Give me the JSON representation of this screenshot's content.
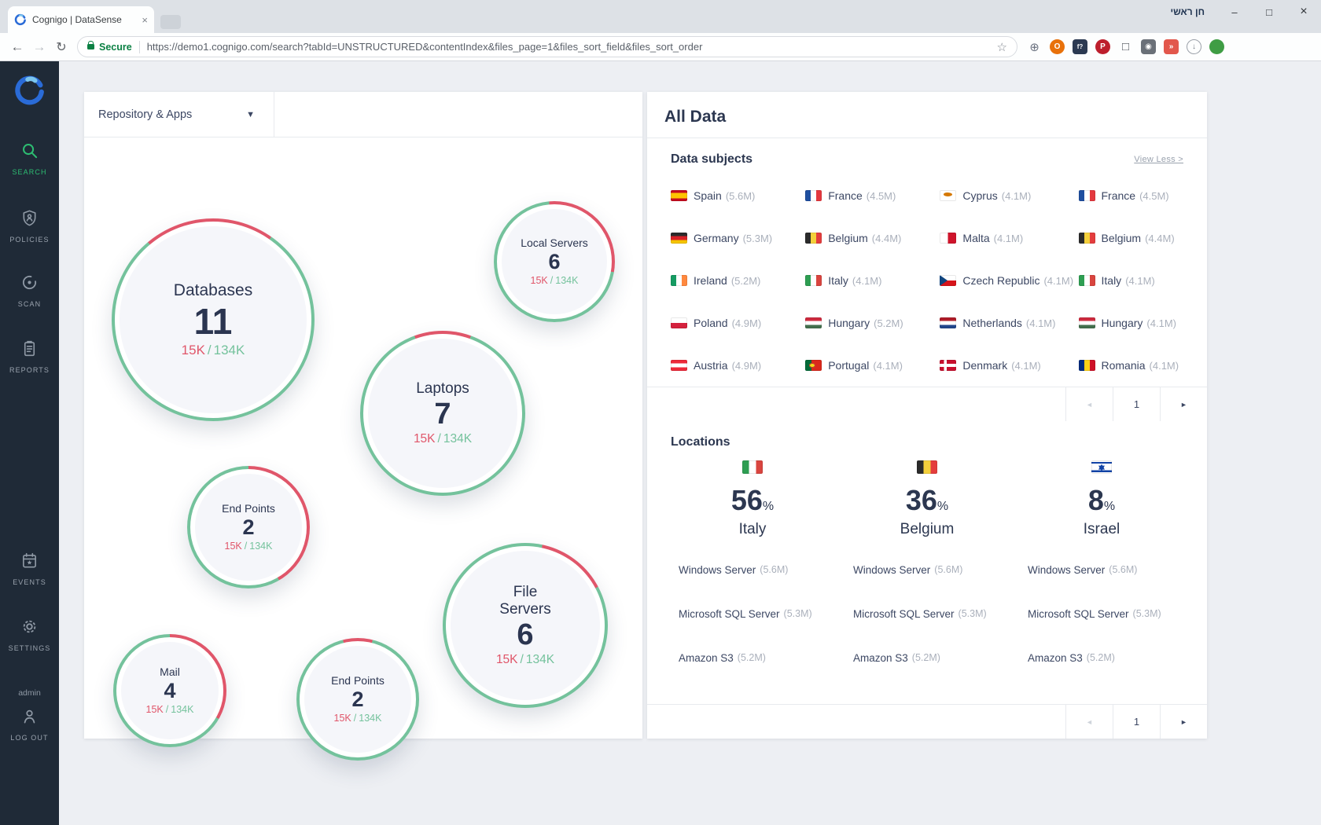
{
  "browser": {
    "profile_label": "חן ראשי",
    "tab": {
      "title": "Cognigo | DataSense"
    },
    "address": {
      "secure_label": "Secure",
      "url": "https://demo1.cognigo.com/search?tabId=UNSTRUCTURED&contentIndex&files_page=1&files_sort_field&files_sort_order"
    },
    "extensions": [
      {
        "name": "globe-extension-icon",
        "glyph": "⊕",
        "shape": "plain",
        "fg": "#6b7280",
        "bg": ""
      },
      {
        "name": "orange-o-extension-icon",
        "glyph": "O",
        "shape": "circle",
        "fg": "#ffffff",
        "bg": "#e8710a"
      },
      {
        "name": "fq-extension-icon",
        "glyph": "f?",
        "shape": "square small-glyph",
        "fg": "#ffffff",
        "bg": "#2c3a52"
      },
      {
        "name": "pin-extension-icon",
        "glyph": "P",
        "shape": "circle",
        "fg": "#ffffff",
        "bg": "#bd1f2d"
      },
      {
        "name": "crop-extension-icon",
        "glyph": "□",
        "shape": "plain",
        "fg": "#4a4f57",
        "bg": ""
      },
      {
        "name": "camera-extension-icon",
        "glyph": "◉",
        "shape": "square",
        "fg": "#ffffff",
        "bg": "#6a7078"
      },
      {
        "name": "fast-forward-extension-icon",
        "glyph": "»",
        "shape": "square",
        "fg": "#ffffff",
        "bg": "#e2574c"
      },
      {
        "name": "download-extension-icon",
        "glyph": "↓",
        "shape": "outline",
        "fg": "#7a8089",
        "bg": ""
      },
      {
        "name": "green-dot-extension-icon",
        "glyph": "",
        "shape": "circle",
        "fg": "#ffffff",
        "bg": "#3f9d44"
      }
    ]
  },
  "icons": {
    "minimize": "–",
    "maximize": "□",
    "close": "×",
    "tab_close": "×",
    "back": "←",
    "forward": "→",
    "refresh": "↻",
    "bookmark_star": "☆",
    "caret_down": "▼",
    "page_prev": "◄",
    "page_next": "►"
  },
  "sidebar": {
    "items": [
      {
        "label": "SEARCH",
        "icon": "search",
        "active": true
      },
      {
        "label": "POLICIES",
        "icon": "shield",
        "active": false
      },
      {
        "label": "SCAN",
        "icon": "scan",
        "active": false
      },
      {
        "label": "REPORTS",
        "icon": "report",
        "active": false
      },
      {
        "label": "EVENTS",
        "icon": "calendar",
        "active": false
      },
      {
        "label": "SETTINGS",
        "icon": "gear",
        "active": false
      }
    ],
    "user": "admin",
    "logout_label": "LOG OUT"
  },
  "repository_panel": {
    "dropdown_label": "Repository & Apps",
    "detail_separator": "/",
    "bubbles": [
      {
        "label": "Databases",
        "count": "11",
        "current": "15K",
        "total": "134K"
      },
      {
        "label": "Local Servers",
        "count": "6",
        "current": "15K",
        "total": "134K"
      },
      {
        "label": "Laptops",
        "count": "7",
        "current": "15K",
        "total": "134K"
      },
      {
        "label": "End Points",
        "count": "2",
        "current": "15K",
        "total": "134K"
      },
      {
        "label": "File Servers",
        "count": "6",
        "current": "15K",
        "total": "134K"
      },
      {
        "label": "Mail",
        "count": "4",
        "current": "15K",
        "total": "134K"
      },
      {
        "label": "End Points",
        "count": "2",
        "current": "15K",
        "total": "134K"
      }
    ]
  },
  "all_data": {
    "title": "All Data",
    "data_subjects": {
      "title": "Data subjects",
      "view_less": "View Less >",
      "page": "1",
      "items": [
        {
          "country": "Spain",
          "value": "(5.6M)",
          "flag": "spain"
        },
        {
          "country": "France",
          "value": "(4.5M)",
          "flag": "france"
        },
        {
          "country": "Cyprus",
          "value": "(4.1M)",
          "flag": "cyprus"
        },
        {
          "country": "France",
          "value": "(4.5M)",
          "flag": "france"
        },
        {
          "country": "Germany",
          "value": "(5.3M)",
          "flag": "germany"
        },
        {
          "country": "Belgium",
          "value": "(4.4M)",
          "flag": "belgium"
        },
        {
          "country": "Malta",
          "value": "(4.1M)",
          "flag": "malta"
        },
        {
          "country": "Belgium",
          "value": "(4.4M)",
          "flag": "belgium"
        },
        {
          "country": "Ireland",
          "value": "(5.2M)",
          "flag": "ireland"
        },
        {
          "country": "Italy",
          "value": "(4.1M)",
          "flag": "italy"
        },
        {
          "country": "Czech Republic",
          "value": "(4.1M)",
          "flag": "czech"
        },
        {
          "country": "Italy",
          "value": "(4.1M)",
          "flag": "italy"
        },
        {
          "country": "Poland",
          "value": "(4.9M)",
          "flag": "poland"
        },
        {
          "country": "Hungary",
          "value": "(5.2M)",
          "flag": "hungary"
        },
        {
          "country": "Netherlands",
          "value": "(4.1M)",
          "flag": "netherlands"
        },
        {
          "country": "Hungary",
          "value": "(4.1M)",
          "flag": "hungary"
        },
        {
          "country": "Austria",
          "value": "(4.9M)",
          "flag": "austria"
        },
        {
          "country": "Portugal",
          "value": "(4.1M)",
          "flag": "portugal"
        },
        {
          "country": "Denmark",
          "value": "(4.1M)",
          "flag": "denmark"
        },
        {
          "country": "Romania",
          "value": "(4.1M)",
          "flag": "romania"
        }
      ]
    },
    "locations": {
      "title": "Locations",
      "percent_sign": "%",
      "page": "1",
      "columns": [
        {
          "percent": "56",
          "country": "Italy",
          "flag": "italy",
          "servers": [
            {
              "name": "Windows Server",
              "value": "(5.6M)"
            },
            {
              "name": "Microsoft SQL Server",
              "value": "(5.3M)"
            },
            {
              "name": "Amazon S3",
              "value": "(5.2M)"
            }
          ]
        },
        {
          "percent": "36",
          "country": "Belgium",
          "flag": "belgium",
          "servers": [
            {
              "name": "Windows Server",
              "value": "(5.6M)"
            },
            {
              "name": "Microsoft SQL Server",
              "value": "(5.3M)"
            },
            {
              "name": "Amazon S3",
              "value": "(5.2M)"
            }
          ]
        },
        {
          "percent": "8",
          "country": "Israel",
          "flag": "israel",
          "servers": [
            {
              "name": "Windows Server",
              "value": "(5.6M)"
            },
            {
              "name": "Microsoft SQL Server",
              "value": "(5.3M)"
            },
            {
              "name": "Amazon S3",
              "value": "(5.2M)"
            }
          ]
        }
      ]
    }
  },
  "colors": {
    "sidebar_bg": "#1f2a37",
    "accent_green": "#2dbd72",
    "ring_green": "#74c29c",
    "ring_red": "#e0566a",
    "secure_green": "#0b8043",
    "navy_text": "#2c3750"
  }
}
